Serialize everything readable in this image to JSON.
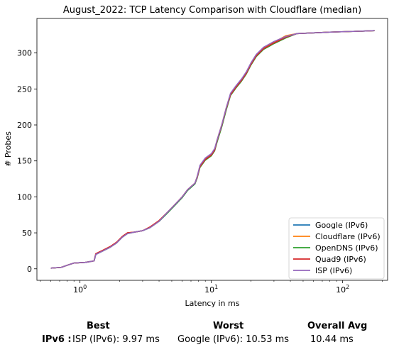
{
  "chart_data": {
    "type": "line",
    "title": "August_2022: TCP Latency Comparison with Cloudflare (median)",
    "xlabel": "Latency in ms",
    "ylabel": "# Probes",
    "x_scale": "log",
    "xlim": [
      0.47,
      220
    ],
    "ylim": [
      -16,
      348
    ],
    "x_ticks": [
      1,
      10,
      100
    ],
    "x_tick_labels": [
      "10^0",
      "10^1",
      "10^2"
    ],
    "y_ticks": [
      0,
      50,
      100,
      150,
      200,
      250,
      300
    ],
    "grid": false,
    "legend_position": "lower right",
    "series": [
      {
        "name": "Google (IPv6)",
        "color": "#1f77b4",
        "points": [
          [
            0.6,
            1
          ],
          [
            0.72,
            2
          ],
          [
            0.8,
            5
          ],
          [
            0.9,
            8
          ],
          [
            1.1,
            9
          ],
          [
            1.28,
            11
          ],
          [
            1.32,
            20
          ],
          [
            1.5,
            25
          ],
          [
            1.7,
            30
          ],
          [
            1.9,
            36
          ],
          [
            2.1,
            44
          ],
          [
            2.3,
            49
          ],
          [
            2.6,
            51
          ],
          [
            3.0,
            53
          ],
          [
            3.4,
            57
          ],
          [
            4.0,
            66
          ],
          [
            4.6,
            77
          ],
          [
            5.2,
            87
          ],
          [
            6.0,
            99
          ],
          [
            6.6,
            109
          ],
          [
            7.5,
            118
          ],
          [
            7.8,
            127
          ],
          [
            8.2,
            142
          ],
          [
            9.0,
            152
          ],
          [
            10.0,
            158
          ],
          [
            10.6,
            165
          ],
          [
            11.1,
            178
          ],
          [
            12.0,
            198
          ],
          [
            13.0,
            222
          ],
          [
            14.0,
            242
          ],
          [
            15.5,
            253
          ],
          [
            17.0,
            262
          ],
          [
            18.5,
            272
          ],
          [
            20.0,
            284
          ],
          [
            22.0,
            296
          ],
          [
            25.0,
            306
          ],
          [
            30.0,
            314
          ],
          [
            37.0,
            322
          ],
          [
            45.0,
            327
          ],
          [
            60.0,
            328
          ],
          [
            80.0,
            329
          ],
          [
            120.0,
            330
          ],
          [
            175.0,
            331
          ]
        ]
      },
      {
        "name": "Cloudflare (IPv6)",
        "color": "#ff7f0e",
        "points": [
          [
            0.6,
            1
          ],
          [
            0.72,
            2
          ],
          [
            0.8,
            5
          ],
          [
            0.9,
            8
          ],
          [
            1.1,
            9
          ],
          [
            1.28,
            11
          ],
          [
            1.32,
            21
          ],
          [
            1.5,
            26
          ],
          [
            1.7,
            31
          ],
          [
            1.9,
            37
          ],
          [
            2.1,
            45
          ],
          [
            2.3,
            50
          ],
          [
            2.6,
            51
          ],
          [
            3.0,
            53
          ],
          [
            3.4,
            58
          ],
          [
            4.0,
            67
          ],
          [
            4.6,
            78
          ],
          [
            5.2,
            88
          ],
          [
            6.0,
            100
          ],
          [
            6.6,
            110
          ],
          [
            7.5,
            119
          ],
          [
            7.8,
            128
          ],
          [
            8.2,
            143
          ],
          [
            9.0,
            153
          ],
          [
            10.0,
            159
          ],
          [
            10.6,
            166
          ],
          [
            11.1,
            180
          ],
          [
            12.0,
            200
          ],
          [
            13.0,
            224
          ],
          [
            14.0,
            243
          ],
          [
            15.5,
            254
          ],
          [
            17.0,
            263
          ],
          [
            18.5,
            273
          ],
          [
            20.0,
            285
          ],
          [
            22.0,
            297
          ],
          [
            25.0,
            307
          ],
          [
            30.0,
            315
          ],
          [
            37.0,
            324
          ],
          [
            45.0,
            327
          ],
          [
            60.0,
            328
          ],
          [
            80.0,
            329
          ],
          [
            120.0,
            330
          ],
          [
            175.0,
            331
          ]
        ]
      },
      {
        "name": "OpenDNS (IPv6)",
        "color": "#2ca02c",
        "points": [
          [
            0.6,
            1
          ],
          [
            0.72,
            2
          ],
          [
            0.8,
            5
          ],
          [
            0.9,
            8
          ],
          [
            1.1,
            9
          ],
          [
            1.28,
            11
          ],
          [
            1.32,
            20
          ],
          [
            1.5,
            25
          ],
          [
            1.7,
            30
          ],
          [
            1.9,
            36
          ],
          [
            2.1,
            44
          ],
          [
            2.3,
            49
          ],
          [
            2.6,
            51
          ],
          [
            3.0,
            53
          ],
          [
            3.4,
            57
          ],
          [
            4.0,
            66
          ],
          [
            4.6,
            77
          ],
          [
            5.2,
            87
          ],
          [
            6.0,
            99
          ],
          [
            6.6,
            109
          ],
          [
            7.5,
            118
          ],
          [
            7.8,
            126
          ],
          [
            8.2,
            141
          ],
          [
            9.0,
            151
          ],
          [
            10.0,
            157
          ],
          [
            10.6,
            164
          ],
          [
            11.1,
            177
          ],
          [
            12.0,
            197
          ],
          [
            13.0,
            221
          ],
          [
            14.0,
            241
          ],
          [
            15.5,
            252
          ],
          [
            17.0,
            261
          ],
          [
            18.5,
            271
          ],
          [
            20.0,
            283
          ],
          [
            22.0,
            295
          ],
          [
            25.0,
            305
          ],
          [
            30.0,
            313
          ],
          [
            37.0,
            321
          ],
          [
            45.0,
            327
          ],
          [
            60.0,
            328
          ],
          [
            80.0,
            329
          ],
          [
            120.0,
            330
          ],
          [
            175.0,
            331
          ]
        ]
      },
      {
        "name": "Quad9 (IPv6)",
        "color": "#d62728",
        "points": [
          [
            0.6,
            1
          ],
          [
            0.72,
            2
          ],
          [
            0.8,
            5
          ],
          [
            0.9,
            8
          ],
          [
            1.1,
            9
          ],
          [
            1.28,
            11
          ],
          [
            1.32,
            21
          ],
          [
            1.5,
            26
          ],
          [
            1.7,
            31
          ],
          [
            1.9,
            37
          ],
          [
            2.1,
            45
          ],
          [
            2.3,
            50
          ],
          [
            2.6,
            51
          ],
          [
            3.0,
            53
          ],
          [
            3.4,
            58
          ],
          [
            4.0,
            67
          ],
          [
            4.6,
            78
          ],
          [
            5.2,
            88
          ],
          [
            6.0,
            100
          ],
          [
            6.6,
            110
          ],
          [
            7.5,
            119
          ],
          [
            7.8,
            127
          ],
          [
            8.2,
            142
          ],
          [
            9.0,
            152
          ],
          [
            10.0,
            158
          ],
          [
            10.6,
            165
          ],
          [
            11.1,
            179
          ],
          [
            12.0,
            199
          ],
          [
            13.0,
            223
          ],
          [
            14.0,
            242
          ],
          [
            15.5,
            253
          ],
          [
            17.0,
            262
          ],
          [
            18.5,
            272
          ],
          [
            20.0,
            284
          ],
          [
            22.0,
            296
          ],
          [
            25.0,
            306
          ],
          [
            30.0,
            314
          ],
          [
            37.0,
            322
          ],
          [
            45.0,
            327
          ],
          [
            60.0,
            328
          ],
          [
            80.0,
            329
          ],
          [
            120.0,
            330
          ],
          [
            175.0,
            331
          ]
        ]
      },
      {
        "name": "ISP (IPv6)",
        "color": "#9467bd",
        "points": [
          [
            0.6,
            1
          ],
          [
            0.72,
            2
          ],
          [
            0.8,
            5
          ],
          [
            0.9,
            8
          ],
          [
            1.1,
            9
          ],
          [
            1.28,
            11
          ],
          [
            1.32,
            20
          ],
          [
            1.5,
            25
          ],
          [
            1.7,
            30
          ],
          [
            1.9,
            36
          ],
          [
            2.1,
            44
          ],
          [
            2.3,
            49
          ],
          [
            2.6,
            51
          ],
          [
            3.0,
            53
          ],
          [
            3.4,
            57
          ],
          [
            4.0,
            66
          ],
          [
            4.6,
            78
          ],
          [
            5.2,
            88
          ],
          [
            6.0,
            100
          ],
          [
            6.6,
            110
          ],
          [
            7.5,
            119
          ],
          [
            7.8,
            128
          ],
          [
            8.2,
            144
          ],
          [
            9.0,
            154
          ],
          [
            10.0,
            160
          ],
          [
            10.6,
            167
          ],
          [
            11.1,
            180
          ],
          [
            12.0,
            200
          ],
          [
            13.0,
            224
          ],
          [
            14.0,
            244
          ],
          [
            15.5,
            255
          ],
          [
            17.0,
            264
          ],
          [
            18.5,
            274
          ],
          [
            20.0,
            286
          ],
          [
            22.0,
            298
          ],
          [
            25.0,
            308
          ],
          [
            30.0,
            316
          ],
          [
            37.0,
            323
          ],
          [
            45.0,
            327
          ],
          [
            60.0,
            328
          ],
          [
            80.0,
            329
          ],
          [
            120.0,
            330
          ],
          [
            175.0,
            331
          ]
        ]
      }
    ]
  },
  "summary": {
    "best_label": "Best",
    "worst_label": "Worst",
    "avg_label": "Overall Avg",
    "row_label": "IPv6 :",
    "best_value": "ISP (IPv6): 9.97 ms",
    "worst_value": "Google (IPv6): 10.53 ms",
    "avg_value": "10.44 ms"
  }
}
